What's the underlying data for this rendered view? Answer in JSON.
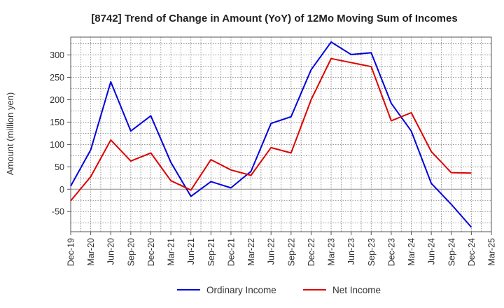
{
  "chart_data": {
    "type": "line",
    "title": "[8742]  Trend of Change in Amount (YoY) of 12Mo Moving Sum of Incomes",
    "xlabel": "",
    "ylabel": "Amount (million yen)",
    "ylim": [
      -95,
      340
    ],
    "yticks": [
      -50,
      0,
      50,
      100,
      150,
      200,
      250,
      300
    ],
    "ytick_labels": [
      "-50",
      "0",
      "50",
      "100",
      "150",
      "200",
      "250",
      "300"
    ],
    "categories": [
      "Dec-19",
      "Mar-20",
      "Jun-20",
      "Sep-20",
      "Dec-20",
      "Mar-21",
      "Jun-21",
      "Sep-21",
      "Dec-21",
      "Mar-22",
      "Jun-22",
      "Sep-22",
      "Dec-22",
      "Mar-23",
      "Jun-23",
      "Sep-23",
      "Dec-23",
      "Mar-24",
      "Jun-24",
      "Sep-24",
      "Dec-24",
      "Mar-25"
    ],
    "grid": true,
    "legend_position": "bottom",
    "series": [
      {
        "name": "Ordinary Income",
        "color": "#0000dd",
        "values": [
          7,
          88,
          240,
          130,
          164,
          60,
          -16,
          17,
          3,
          40,
          147,
          162,
          267,
          329,
          301,
          305,
          192,
          130,
          13,
          -34,
          -85,
          null
        ]
      },
      {
        "name": "Net Income",
        "color": "#dd0000",
        "values": [
          -26,
          28,
          110,
          63,
          81,
          19,
          -2,
          66,
          43,
          31,
          93,
          81,
          200,
          292,
          283,
          274,
          153,
          171,
          84,
          37,
          36,
          null
        ]
      }
    ]
  }
}
